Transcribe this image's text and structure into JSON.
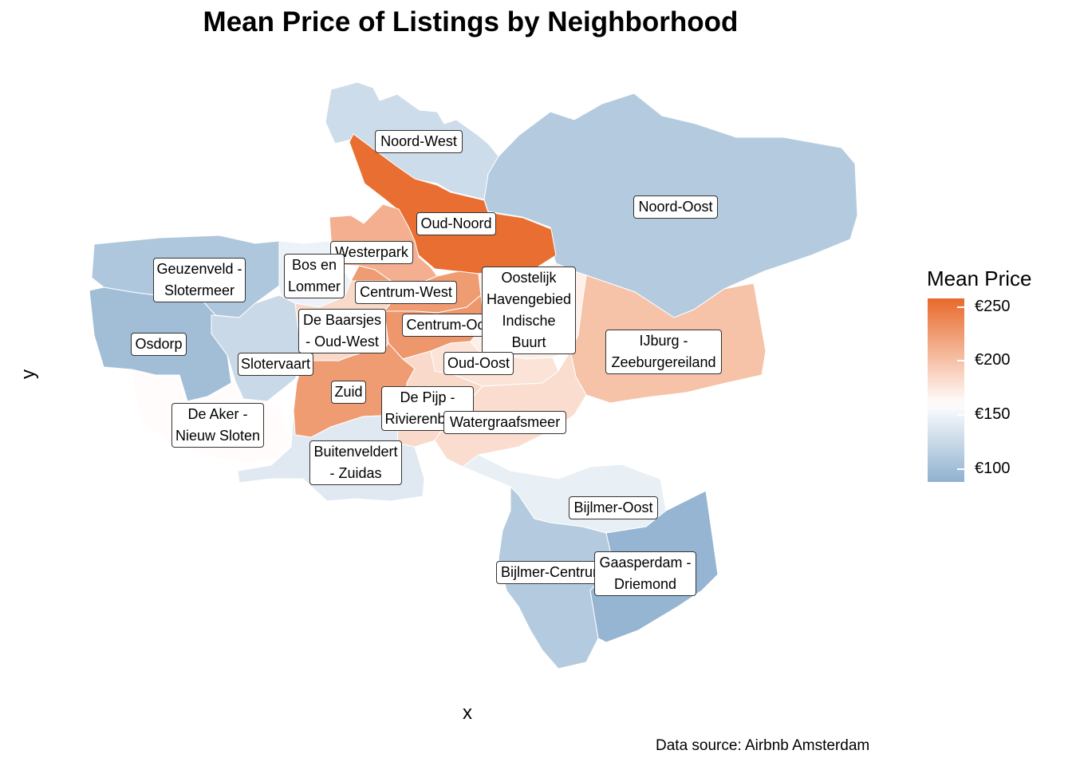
{
  "chart_data": {
    "type": "choropleth",
    "title": "Mean Price of Listings by Neighborhood",
    "xlabel": "x",
    "ylabel": "y",
    "caption": "Data source: Airbnb Amsterdam",
    "legend": {
      "title": "Mean Price",
      "placement": "right",
      "ticks": [
        "€250",
        "€200",
        "€150",
        "€100"
      ],
      "tick_values": [
        250,
        200,
        150,
        100
      ],
      "range": [
        88,
        258
      ],
      "low_color": "#8fb1cf",
      "mid_color": "#ffffff",
      "high_color": "#e8692b",
      "midpoint": 160
    },
    "neighborhoods": [
      {
        "name": "Noord-West",
        "mean_price": 128
      },
      {
        "name": "Noord-Oost",
        "mean_price": 112
      },
      {
        "name": "Oud-Noord",
        "mean_price": 255
      },
      {
        "name": "Westerpark",
        "mean_price": 212
      },
      {
        "name": "Bos en\nLommer",
        "mean_price": 148
      },
      {
        "name": "Geuzenveld -\nSlotermeer",
        "mean_price": 108
      },
      {
        "name": "Osdorp",
        "mean_price": 100
      },
      {
        "name": "Slotervaart",
        "mean_price": 125
      },
      {
        "name": "De Baarsjes\n- Oud-West",
        "mean_price": 185
      },
      {
        "name": "Centrum-West",
        "mean_price": 225
      },
      {
        "name": "Centrum-Oost",
        "mean_price": 228
      },
      {
        "name": "Oostelijk\nHavengebied\nIndische\nBuurt",
        "mean_price": 170
      },
      {
        "name": "IJburg -\nZeeburgereiland",
        "mean_price": 200
      },
      {
        "name": "Oud-Oost",
        "mean_price": 178
      },
      {
        "name": "Zuid",
        "mean_price": 225
      },
      {
        "name": "De Pijp -\nRivierenbuurt",
        "mean_price": 185
      },
      {
        "name": "Watergraafsmeer",
        "mean_price": 182
      },
      {
        "name": "De Aker -\nNieuw Sloten",
        "mean_price": 162
      },
      {
        "name": "Buitenveldert\n- Zuidas",
        "mean_price": 140
      },
      {
        "name": "Bijlmer-Oost",
        "mean_price": 145
      },
      {
        "name": "Bijlmer-Centrum",
        "mean_price": 112
      },
      {
        "name": "Gaasperdam -\nDriemond",
        "mean_price": 92
      }
    ]
  }
}
